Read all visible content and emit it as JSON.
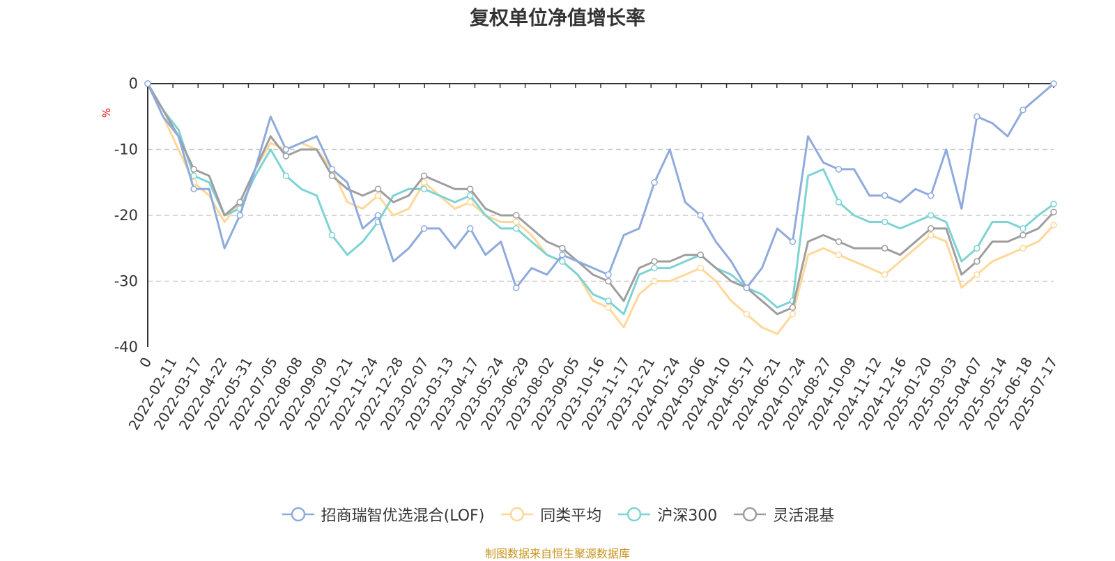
{
  "chart_data": {
    "type": "line",
    "title": "复权单位净值增长率",
    "ylabel": "%",
    "ylim": [
      -40,
      0
    ],
    "yticks": [
      0,
      -10,
      -20,
      -30,
      -40
    ],
    "x_ticks": [
      "0",
      "2022-02-11",
      "2022-03-17",
      "2022-04-22",
      "2022-05-31",
      "2022-07-05",
      "2022-08-08",
      "2022-09-09",
      "2022-10-21",
      "2022-11-24",
      "2022-12-28",
      "2023-02-07",
      "2023-03-13",
      "2023-04-17",
      "2023-05-24",
      "2023-06-29",
      "2023-08-02",
      "2023-09-05",
      "2023-10-16",
      "2023-11-17",
      "2023-12-21",
      "2024-01-24",
      "2024-03-06",
      "2024-04-10",
      "2024-05-17",
      "2024-06-21",
      "2024-07-24",
      "2024-08-27",
      "2024-10-09",
      "2024-11-12",
      "2024-12-16",
      "2025-01-20",
      "2025-03-03",
      "2025-04-07",
      "2025-05-14",
      "2025-06-18",
      "2025-07-17"
    ],
    "grid": true,
    "legend_position": "bottom",
    "series": [
      {
        "name": "招商瑞智优选混合(LOF)",
        "color": "#8faadc",
        "values": [
          0,
          -5,
          -8,
          -16,
          -16,
          -25,
          -20,
          -13,
          -5,
          -10,
          -9,
          -8,
          -13,
          -15,
          -22,
          -20,
          -27,
          -25,
          -22,
          -22,
          -25,
          -22,
          -26,
          -24,
          -31,
          -28,
          -29,
          -26,
          -27,
          -28,
          -29,
          -23,
          -22,
          -15,
          -10,
          -18,
          -20,
          -24,
          -27,
          -31,
          -28,
          -22,
          -24,
          -8,
          -12,
          -13,
          -13,
          -17,
          -17,
          -18,
          -16,
          -17,
          -10,
          -19,
          -5,
          -6,
          -8,
          -4,
          -2,
          0
        ]
      },
      {
        "name": "同类平均",
        "color": "#ffd799",
        "values": [
          0,
          -5,
          -10,
          -15,
          -17,
          -21,
          -18,
          -13,
          -9,
          -10,
          -9,
          -10,
          -13,
          -18,
          -19,
          -17,
          -20,
          -19,
          -15,
          -17,
          -19,
          -18,
          -20,
          -21,
          -21,
          -23,
          -26,
          -27,
          -29,
          -33,
          -34,
          -37,
          -32,
          -30,
          -30,
          -29,
          -28,
          -30,
          -33,
          -35,
          -37,
          -38,
          -35,
          -26,
          -25,
          -26,
          -27,
          -28,
          -29,
          -27,
          -25,
          -23,
          -24,
          -31,
          -29,
          -27,
          -26,
          -25,
          -24,
          -21.5
        ]
      },
      {
        "name": "沪深300",
        "color": "#7ed3d4",
        "values": [
          0,
          -4,
          -7,
          -14,
          -15,
          -20,
          -19,
          -14,
          -10,
          -14,
          -16,
          -17,
          -23,
          -26,
          -24,
          -21,
          -17,
          -16,
          -16,
          -17,
          -18,
          -17,
          -20,
          -22,
          -22,
          -24,
          -26,
          -27,
          -29,
          -32,
          -33,
          -35,
          -29,
          -28,
          -28,
          -27,
          -26,
          -28,
          -29,
          -31,
          -32,
          -34,
          -33,
          -14,
          -13,
          -18,
          -20,
          -21,
          -21,
          -22,
          -21,
          -20,
          -21,
          -27,
          -25,
          -21,
          -21,
          -22,
          -20,
          -18.3
        ]
      },
      {
        "name": "灵活混基",
        "color": "#9e9e9e",
        "values": [
          0,
          -4,
          -8,
          -13,
          -14,
          -20,
          -18,
          -13,
          -8,
          -11,
          -10,
          -10,
          -14,
          -16,
          -17,
          -16,
          -18,
          -17,
          -14,
          -15,
          -16,
          -16,
          -19,
          -20,
          -20,
          -22,
          -24,
          -25,
          -27,
          -29,
          -30,
          -33,
          -28,
          -27,
          -27,
          -26,
          -26,
          -28,
          -30,
          -31,
          -33,
          -35,
          -34,
          -24,
          -23,
          -24,
          -25,
          -25,
          -25,
          -26,
          -24,
          -22,
          -22,
          -29,
          -27,
          -24,
          -24,
          -23,
          -22,
          -19.5
        ]
      }
    ]
  },
  "source_text": "制图数据来自恒生聚源数据库"
}
